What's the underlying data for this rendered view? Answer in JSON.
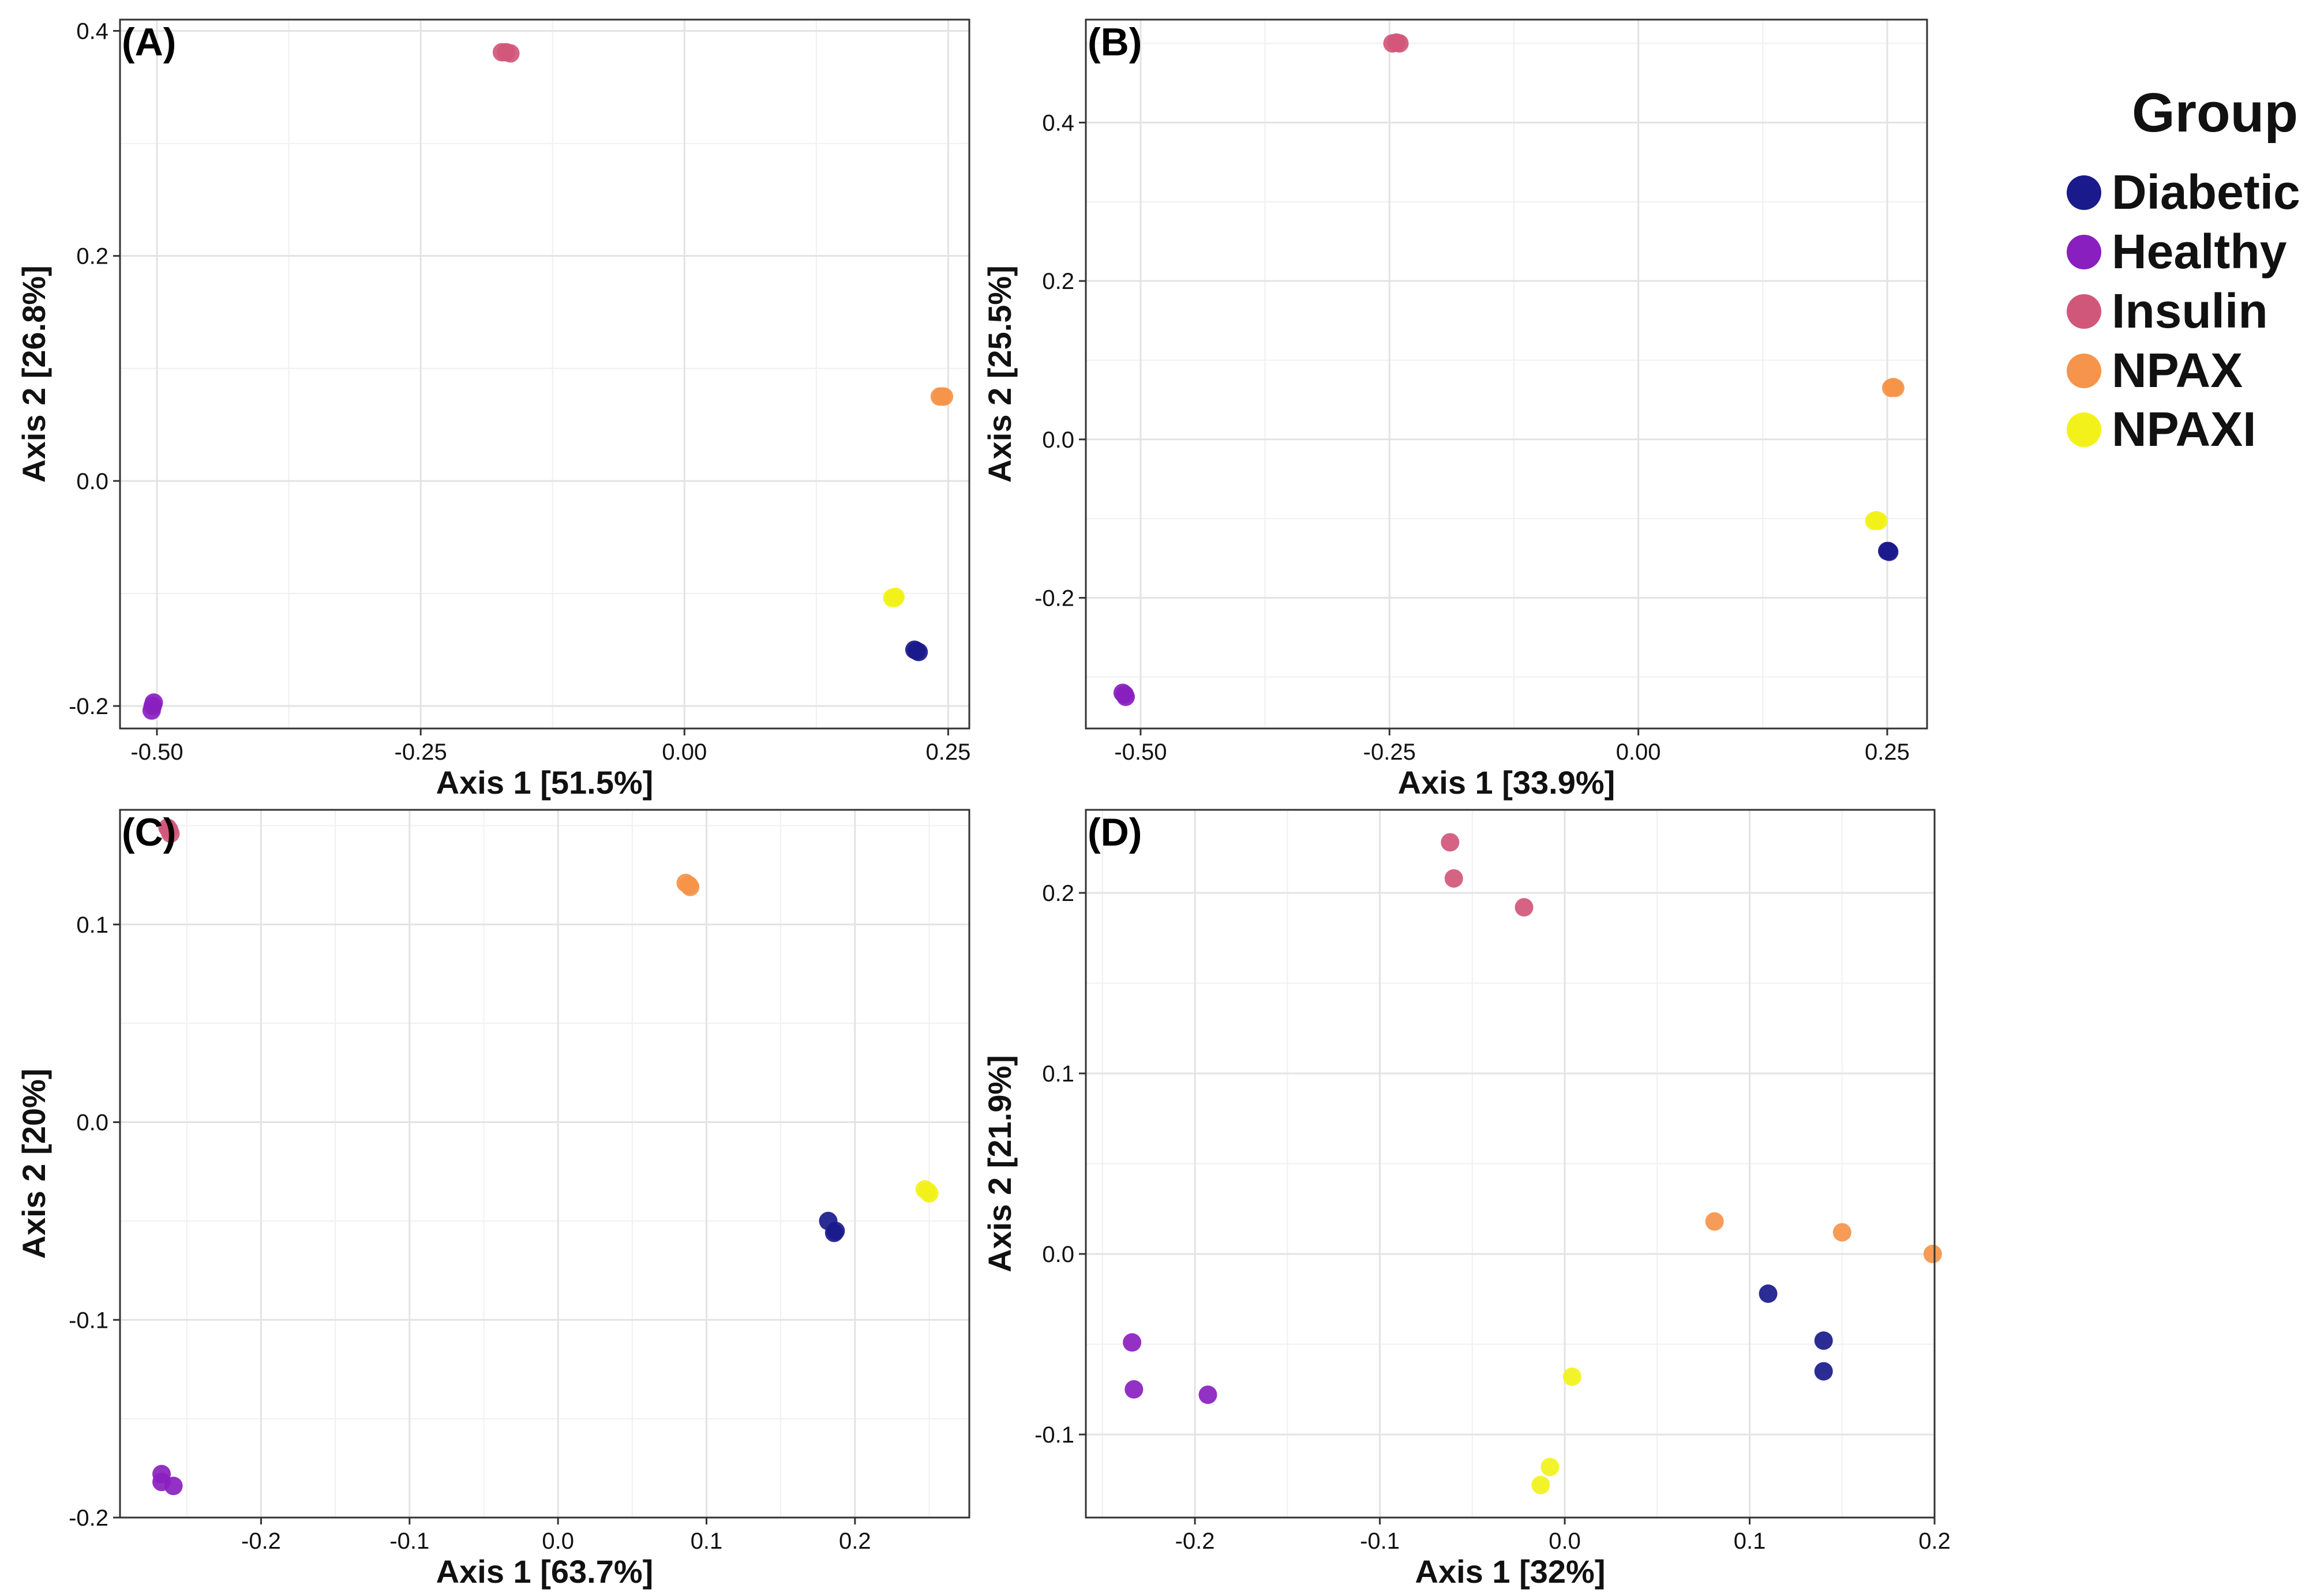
{
  "legend": {
    "title": "Group",
    "entries": [
      {
        "label": "Diabetic",
        "color": "#1a1a8c"
      },
      {
        "label": "Healthy",
        "color": "#8a1fbf"
      },
      {
        "label": "Insulin",
        "color": "#d1577a"
      },
      {
        "label": "NPAX",
        "color": "#f5944a"
      },
      {
        "label": "NPAXI",
        "color": "#f2f21a"
      }
    ]
  },
  "chart_data": [
    {
      "type": "scatter",
      "panel": "(A)",
      "xlabel": "Axis 1 [51.5%]",
      "ylabel": "Axis 2 [26.8%]",
      "xlim": [
        -0.535,
        0.27
      ],
      "ylim": [
        -0.22,
        0.41
      ],
      "xticks": [
        -0.5,
        -0.25,
        0.0,
        0.25
      ],
      "xtick_labels": [
        "-0.50",
        "-0.25",
        "0.00",
        "0.25"
      ],
      "yticks": [
        -0.2,
        0.0,
        0.2,
        0.4
      ],
      "ytick_labels": [
        "-0.2",
        "0.0",
        "0.2",
        "0.4"
      ],
      "series": [
        {
          "name": "Diabetic",
          "color": "#1a1a8c",
          "points": [
            [
              0.218,
              -0.15
            ],
            [
              0.222,
              -0.152
            ],
            [
              0.22,
              -0.151
            ]
          ]
        },
        {
          "name": "Healthy",
          "color": "#8a1fbf",
          "points": [
            [
              -0.503,
              -0.197
            ],
            [
              -0.505,
              -0.204
            ],
            [
              -0.504,
              -0.2
            ]
          ]
        },
        {
          "name": "Insulin",
          "color": "#d1577a",
          "points": [
            [
              -0.173,
              0.381
            ],
            [
              -0.165,
              0.38
            ],
            [
              -0.169,
              0.381
            ]
          ]
        },
        {
          "name": "NPAX",
          "color": "#f5944a",
          "points": [
            [
              0.242,
              0.075
            ],
            [
              0.246,
              0.075
            ],
            [
              0.244,
              0.075
            ]
          ]
        },
        {
          "name": "NPAXI",
          "color": "#f2f21a",
          "points": [
            [
              0.197,
              -0.104
            ],
            [
              0.2,
              -0.103
            ],
            [
              0.199,
              -0.104
            ]
          ]
        }
      ]
    },
    {
      "type": "scatter",
      "panel": "(B)",
      "xlabel": "Axis 1 [33.9%]",
      "ylabel": "Axis 2 [25.5%]",
      "xlim": [
        -0.555,
        0.29
      ],
      "ylim": [
        -0.365,
        0.53
      ],
      "xticks": [
        -0.5,
        -0.25,
        0.0,
        0.25
      ],
      "xtick_labels": [
        "-0.50",
        "-0.25",
        "0.00",
        "0.25"
      ],
      "yticks": [
        -0.2,
        0.0,
        0.2,
        0.4
      ],
      "ytick_labels": [
        "-0.2",
        "0.0",
        "0.2",
        "0.4"
      ],
      "series": [
        {
          "name": "Diabetic",
          "color": "#1a1a8c",
          "points": [
            [
              0.25,
              -0.141
            ],
            [
              0.252,
              -0.142
            ],
            [
              0.251,
              -0.141
            ]
          ]
        },
        {
          "name": "Healthy",
          "color": "#8a1fbf",
          "points": [
            [
              -0.518,
              -0.32
            ],
            [
              -0.515,
              -0.325
            ],
            [
              -0.516,
              -0.322
            ]
          ]
        },
        {
          "name": "Insulin",
          "color": "#d1577a",
          "points": [
            [
              -0.247,
              0.5
            ],
            [
              -0.24,
              0.5
            ],
            [
              -0.243,
              0.501
            ]
          ]
        },
        {
          "name": "NPAX",
          "color": "#f5944a",
          "points": [
            [
              0.254,
              0.065
            ],
            [
              0.258,
              0.065
            ],
            [
              0.256,
              0.066
            ]
          ]
        },
        {
          "name": "NPAXI",
          "color": "#f2f21a",
          "points": [
            [
              0.237,
              -0.103
            ],
            [
              0.241,
              -0.103
            ],
            [
              0.239,
              -0.102
            ]
          ]
        }
      ]
    },
    {
      "type": "scatter",
      "panel": "(C)",
      "xlabel": "Axis 1 [63.7%]",
      "ylabel": "Axis 2 [20%]",
      "xlim": [
        -0.295,
        0.277
      ],
      "ylim": [
        -0.2,
        0.158
      ],
      "xticks": [
        -0.2,
        -0.1,
        0.0,
        0.1,
        0.2
      ],
      "xtick_labels": [
        "-0.2",
        "-0.1",
        "0.0",
        "0.1",
        "0.2"
      ],
      "yticks": [
        -0.2,
        -0.1,
        0.0,
        0.1
      ],
      "ytick_labels": [
        "-0.2",
        "-0.1",
        "0.0",
        "0.1"
      ],
      "series": [
        {
          "name": "Diabetic",
          "color": "#1a1a8c",
          "points": [
            [
              0.182,
              -0.05
            ],
            [
              0.187,
              -0.055
            ],
            [
              0.186,
              -0.056
            ]
          ]
        },
        {
          "name": "Healthy",
          "color": "#8a1fbf",
          "points": [
            [
              -0.267,
              -0.178
            ],
            [
              -0.267,
              -0.182
            ],
            [
              -0.259,
              -0.184
            ]
          ]
        },
        {
          "name": "Insulin",
          "color": "#d1577a",
          "points": [
            [
              -0.263,
              0.149
            ],
            [
              -0.261,
              0.146
            ],
            [
              -0.262,
              0.148
            ]
          ]
        },
        {
          "name": "NPAX",
          "color": "#f5944a",
          "points": [
            [
              0.086,
              0.121
            ],
            [
              0.089,
              0.119
            ],
            [
              0.088,
              0.12
            ]
          ]
        },
        {
          "name": "NPAXI",
          "color": "#f2f21a",
          "points": [
            [
              0.247,
              -0.034
            ],
            [
              0.25,
              -0.036
            ],
            [
              0.249,
              -0.035
            ]
          ]
        }
      ]
    },
    {
      "type": "scatter",
      "panel": "(D)",
      "xlabel": "Axis 1 [32%]",
      "ylabel": "Axis 2 [21.9%]",
      "xlim": [
        -0.259,
        0.2
      ],
      "ylim": [
        -0.146,
        0.246
      ],
      "xticks": [
        -0.2,
        -0.1,
        0.0,
        0.1,
        0.2
      ],
      "xtick_labels": [
        "-0.2",
        "-0.1",
        "0.0",
        "0.1",
        "0.2"
      ],
      "yticks": [
        -0.1,
        0.0,
        0.1,
        0.2
      ],
      "ytick_labels": [
        "-0.1",
        "0.0",
        "0.1",
        "0.2"
      ],
      "series": [
        {
          "name": "Diabetic",
          "color": "#1a1a8c",
          "points": [
            [
              0.11,
              -0.022
            ],
            [
              0.14,
              -0.048
            ],
            [
              0.14,
              -0.065
            ]
          ]
        },
        {
          "name": "Healthy",
          "color": "#8a1fbf",
          "points": [
            [
              -0.234,
              -0.049
            ],
            [
              -0.233,
              -0.075
            ],
            [
              -0.193,
              -0.078
            ]
          ]
        },
        {
          "name": "Insulin",
          "color": "#d1577a",
          "points": [
            [
              -0.062,
              0.228
            ],
            [
              -0.06,
              0.208
            ],
            [
              -0.022,
              0.192
            ]
          ]
        },
        {
          "name": "NPAX",
          "color": "#f5944a",
          "points": [
            [
              0.081,
              0.018
            ],
            [
              0.15,
              0.012
            ],
            [
              0.199,
              0.0
            ]
          ]
        },
        {
          "name": "NPAXI",
          "color": "#f2f21a",
          "points": [
            [
              0.004,
              -0.068
            ],
            [
              -0.008,
              -0.118
            ],
            [
              -0.013,
              -0.128
            ]
          ]
        }
      ]
    }
  ]
}
